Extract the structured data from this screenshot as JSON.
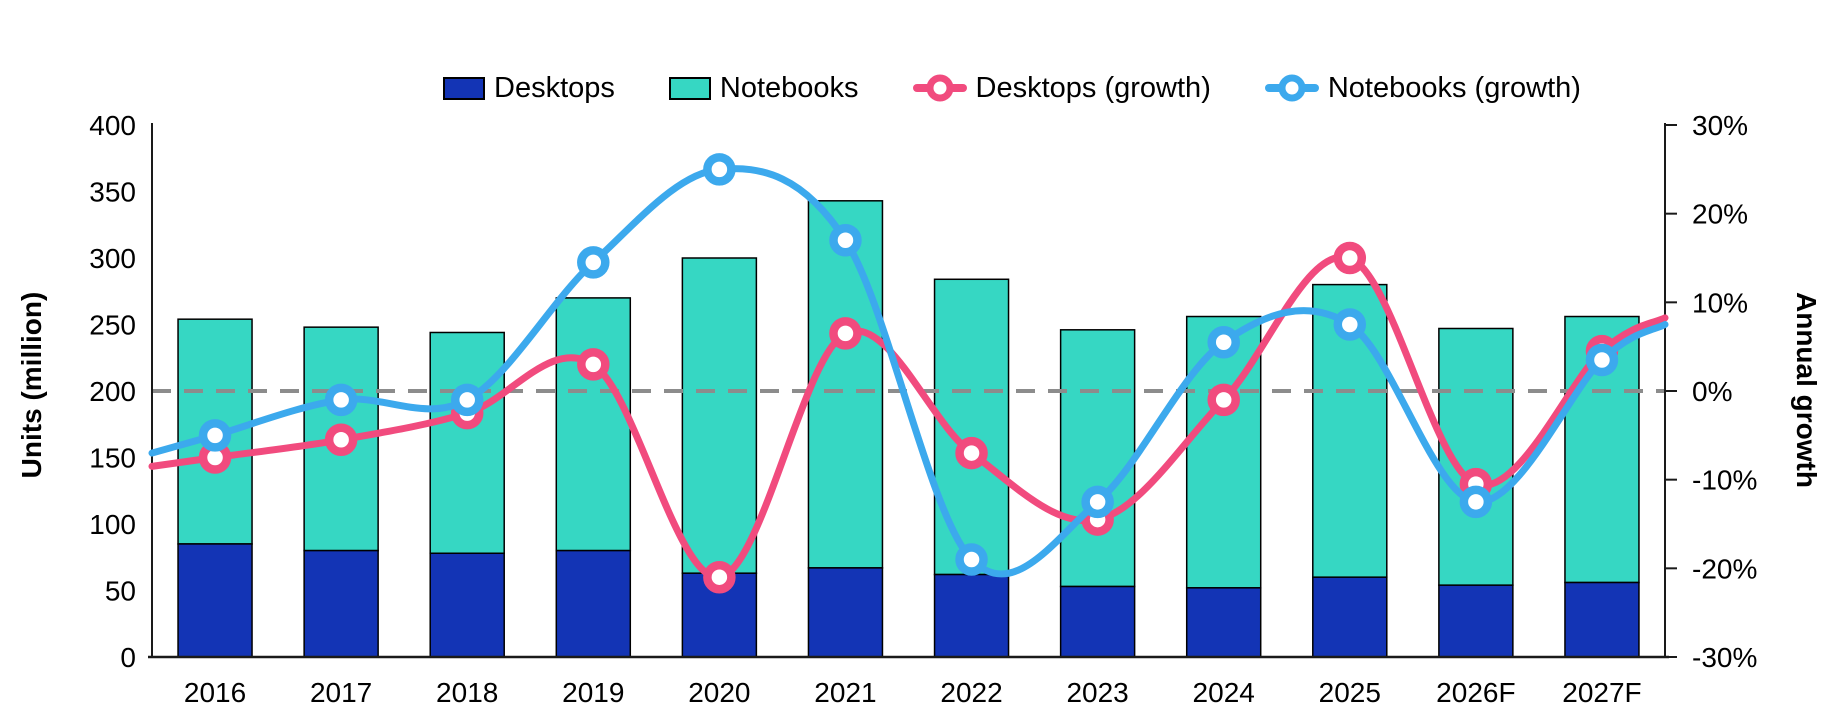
{
  "chart_data": {
    "type": "combo",
    "chart_types": [
      "stacked-bar",
      "line"
    ],
    "categories": [
      "2016",
      "2017",
      "2018",
      "2019",
      "2020",
      "2021",
      "2022",
      "2023",
      "2024",
      "2025",
      "2026F",
      "2027F"
    ],
    "series": [
      {
        "name": "Desktops",
        "type": "bar",
        "stack": "units",
        "axis": "left",
        "color": "#1334b5",
        "values": [
          85,
          80,
          78,
          80,
          63,
          67,
          62,
          53,
          52,
          60,
          54,
          56
        ]
      },
      {
        "name": "Notebooks",
        "type": "bar",
        "stack": "units",
        "axis": "left",
        "color": "#36d7c3",
        "values": [
          169,
          168,
          166,
          190,
          237,
          276,
          222,
          193,
          204,
          220,
          193,
          200
        ]
      },
      {
        "name": "Desktops (growth)",
        "type": "line",
        "axis": "right",
        "color": "#f14b7e",
        "values_pct": [
          -7.5,
          -5.5,
          -2.5,
          3,
          -21,
          6.5,
          -7,
          -14.5,
          -1,
          15,
          -10.5,
          4.5
        ]
      },
      {
        "name": "Notebooks (growth)",
        "type": "line",
        "axis": "right",
        "color": "#3ca9ed",
        "values_pct": [
          -5,
          -1,
          -1,
          14.5,
          25,
          17,
          -19,
          -12.5,
          5.5,
          7.5,
          -12.5,
          3.5
        ]
      }
    ],
    "left_axis": {
      "title": "Units (million)",
      "min": 0,
      "max": 400,
      "step": 50,
      "tick_labels": [
        "0",
        "50",
        "100",
        "150",
        "200",
        "250",
        "300",
        "350",
        "400"
      ]
    },
    "right_axis": {
      "title": "Annual growth",
      "min": -30,
      "max": 30,
      "step": 10,
      "tick_labels": [
        "30%",
        "20%",
        "10%",
        "0%",
        "-10%",
        "-20%",
        "-30%"
      ],
      "tick_values": [
        30,
        20,
        10,
        0,
        -10,
        -20,
        -30
      ]
    },
    "zero_gridline": {
      "value_pct": 0,
      "style": "dashed",
      "color": "#8c8c8c"
    },
    "legend_position": "top",
    "background": "#ffffff",
    "bar_outline_color": "#000000",
    "axis_line_color": "#1a1a1a"
  }
}
